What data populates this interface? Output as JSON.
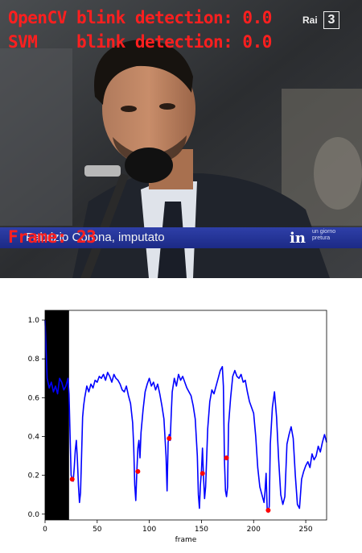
{
  "video": {
    "opencv_label": "OpenCV blink detection: 0.0",
    "svm_label": "SVM    blink detection: 0.0",
    "frame_label": "Frame: 23",
    "caption": "Fabrizio Corona, imputato",
    "channel": "Rai",
    "channel_number": "3",
    "program_logo": "in",
    "program_sub": "un giorno pretura"
  },
  "chart_data": {
    "type": "line",
    "xlabel": "frame",
    "ylabel": "",
    "xlim": [
      0,
      270
    ],
    "ylim": [
      -0.03,
      1.05
    ],
    "xticks": [
      0,
      50,
      100,
      150,
      200,
      250
    ],
    "yticks": [
      0.0,
      0.2,
      0.4,
      0.6,
      0.8,
      1.0
    ],
    "line_color": "#0000ff",
    "marker_color": "#ff0000",
    "shaded_region": {
      "x": [
        0,
        23
      ],
      "color": "#000000"
    },
    "series": [
      {
        "style": "line",
        "x": [
          0,
          2,
          4,
          6,
          8,
          10,
          12,
          14,
          16,
          18,
          20,
          22,
          23,
          25,
          27,
          28,
          29,
          30,
          31,
          32,
          33,
          34,
          35,
          36,
          37,
          38,
          40,
          42,
          44,
          46,
          48,
          50,
          52,
          54,
          56,
          58,
          60,
          62,
          64,
          66,
          68,
          70,
          72,
          74,
          76,
          78,
          80,
          82,
          84,
          85,
          86,
          87,
          88,
          89,
          90,
          91,
          92,
          94,
          96,
          98,
          100,
          102,
          104,
          106,
          108,
          110,
          112,
          114,
          116,
          117,
          118,
          119,
          120,
          121,
          122,
          124,
          126,
          128,
          130,
          132,
          134,
          136,
          138,
          140,
          142,
          144,
          146,
          147,
          148,
          149,
          150,
          151,
          152,
          153,
          154,
          156,
          158,
          160,
          162,
          164,
          166,
          168,
          170,
          171,
          172,
          173,
          174,
          175,
          176,
          178,
          180,
          182,
          184,
          186,
          188,
          190,
          192,
          194,
          196,
          198,
          200,
          202,
          204,
          206,
          208,
          210,
          211,
          212,
          213,
          214,
          215,
          216,
          218,
          220,
          222,
          224,
          226,
          228,
          230,
          232,
          234,
          236,
          238,
          240,
          242,
          244,
          246,
          248,
          250,
          252,
          254,
          256,
          258,
          260,
          262,
          264,
          266,
          268,
          270
        ],
        "y": [
          1.0,
          0.7,
          0.65,
          0.68,
          0.63,
          0.66,
          0.62,
          0.7,
          0.68,
          0.64,
          0.66,
          0.7,
          0.62,
          0.2,
          0.17,
          0.24,
          0.33,
          0.38,
          0.28,
          0.15,
          0.06,
          0.11,
          0.3,
          0.5,
          0.56,
          0.6,
          0.66,
          0.63,
          0.67,
          0.65,
          0.69,
          0.68,
          0.71,
          0.7,
          0.72,
          0.69,
          0.73,
          0.71,
          0.68,
          0.72,
          0.7,
          0.69,
          0.67,
          0.64,
          0.63,
          0.66,
          0.61,
          0.57,
          0.47,
          0.35,
          0.15,
          0.07,
          0.22,
          0.34,
          0.38,
          0.29,
          0.42,
          0.54,
          0.63,
          0.67,
          0.7,
          0.66,
          0.68,
          0.64,
          0.67,
          0.62,
          0.56,
          0.49,
          0.3,
          0.12,
          0.37,
          0.41,
          0.38,
          0.52,
          0.63,
          0.7,
          0.66,
          0.72,
          0.69,
          0.71,
          0.68,
          0.65,
          0.63,
          0.61,
          0.56,
          0.49,
          0.3,
          0.1,
          0.03,
          0.15,
          0.22,
          0.34,
          0.19,
          0.08,
          0.14,
          0.44,
          0.58,
          0.64,
          0.62,
          0.66,
          0.7,
          0.74,
          0.76,
          0.66,
          0.28,
          0.12,
          0.09,
          0.14,
          0.46,
          0.6,
          0.71,
          0.74,
          0.71,
          0.7,
          0.72,
          0.68,
          0.69,
          0.63,
          0.58,
          0.55,
          0.52,
          0.4,
          0.24,
          0.14,
          0.1,
          0.06,
          0.12,
          0.21,
          0.03,
          0.01,
          0.04,
          0.36,
          0.55,
          0.63,
          0.5,
          0.28,
          0.1,
          0.05,
          0.09,
          0.36,
          0.41,
          0.45,
          0.39,
          0.2,
          0.05,
          0.03,
          0.18,
          0.22,
          0.25,
          0.27,
          0.24,
          0.31,
          0.28,
          0.3,
          0.35,
          0.32,
          0.37,
          0.41,
          0.37
        ]
      },
      {
        "style": "markers",
        "x": [
          26,
          89,
          119,
          151,
          174,
          214
        ],
        "y": [
          0.18,
          0.22,
          0.39,
          0.21,
          0.29,
          0.02
        ]
      }
    ]
  }
}
